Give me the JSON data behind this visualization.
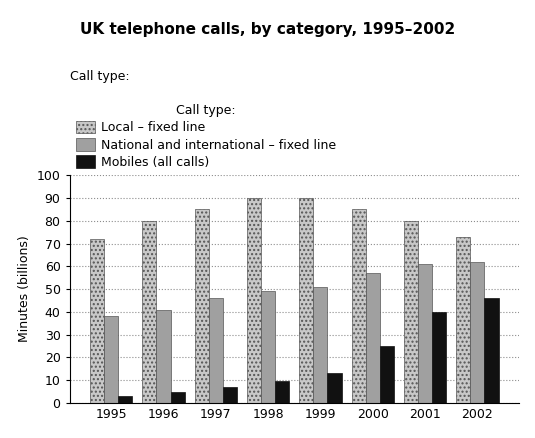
{
  "title": "UK telephone calls, by category, 1995–2002",
  "ylabel": "Minutes (billions)",
  "years": [
    1995,
    1996,
    1997,
    1998,
    1999,
    2000,
    2001,
    2002
  ],
  "local_fixed": [
    72,
    80,
    85,
    90,
    90,
    85,
    80,
    73
  ],
  "national_fixed": [
    38,
    41,
    46,
    49,
    51,
    57,
    61,
    62
  ],
  "mobiles": [
    3,
    5,
    7,
    9.5,
    13,
    25,
    40,
    46
  ],
  "ylim": [
    0,
    100
  ],
  "yticks": [
    0,
    10,
    20,
    30,
    40,
    50,
    60,
    70,
    80,
    90,
    100
  ],
  "color_local": "#c8c8c8",
  "color_national": "#a0a0a0",
  "color_mobiles": "#111111",
  "hatch_local": "....",
  "hatch_national": "",
  "legend_label_local": "Local – fixed line",
  "legend_label_national": "National and international – fixed line",
  "legend_label_mobiles": "Mobiles (all calls)",
  "legend_prefix": "Call type:",
  "bar_width": 0.27,
  "figsize": [
    5.35,
    4.38
  ],
  "dpi": 100,
  "background_color": "#ffffff"
}
